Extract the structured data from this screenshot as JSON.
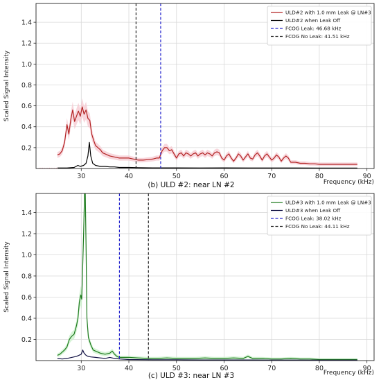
{
  "chart_data": [
    {
      "type": "line",
      "title": "",
      "caption": "(b) ULD #2: near LN #2",
      "xlabel": "Frequency (kHz)",
      "ylabel": "Scaled Signal Intensity",
      "xlim": [
        20.5,
        91.5
      ],
      "ylim": [
        0,
        1.58
      ],
      "x_ticks": [
        30,
        40,
        50,
        60,
        70,
        80,
        90
      ],
      "y_ticks": [
        0.2,
        0.4,
        0.6,
        0.8,
        1.0,
        1.2,
        1.4
      ],
      "grid": true,
      "legend_position": "top-right",
      "series": [
        {
          "name": "ULD#2 with 1.0 mm Leak @ LN#3",
          "color": "#b22222",
          "band_color": "#f6c8d0",
          "x": [
            25,
            25.5,
            26,
            26.5,
            27,
            27.4,
            27.8,
            28.2,
            28.6,
            29,
            29.4,
            29.8,
            30.2,
            30.6,
            31,
            31.4,
            31.8,
            32.2,
            32.6,
            33,
            33.5,
            34,
            34.5,
            35,
            35.5,
            36,
            37,
            38,
            39,
            40,
            41,
            42,
            43,
            44,
            45,
            45.8,
            46.4,
            47,
            47.5,
            48,
            48.5,
            49,
            49.5,
            50,
            50.5,
            51,
            51.5,
            52,
            52.5,
            53,
            53.5,
            54,
            54.5,
            55,
            55.5,
            56,
            56.5,
            57,
            57.5,
            58,
            58.5,
            59,
            59.5,
            60,
            60.5,
            61,
            61.5,
            62,
            62.5,
            63,
            63.5,
            64,
            64.5,
            65,
            65.5,
            66,
            66.5,
            67,
            67.5,
            68,
            68.5,
            69,
            69.5,
            70,
            70.5,
            71,
            71.5,
            72,
            72.5,
            73,
            73.5,
            74,
            75,
            76,
            77,
            78,
            79,
            80,
            82,
            84,
            86,
            88
          ],
          "y": [
            0.13,
            0.14,
            0.17,
            0.25,
            0.42,
            0.33,
            0.47,
            0.56,
            0.45,
            0.5,
            0.55,
            0.5,
            0.59,
            0.52,
            0.56,
            0.48,
            0.46,
            0.33,
            0.27,
            0.22,
            0.2,
            0.18,
            0.15,
            0.14,
            0.13,
            0.12,
            0.11,
            0.1,
            0.1,
            0.1,
            0.09,
            0.08,
            0.08,
            0.085,
            0.09,
            0.1,
            0.1,
            0.17,
            0.2,
            0.2,
            0.17,
            0.18,
            0.14,
            0.1,
            0.14,
            0.15,
            0.12,
            0.15,
            0.14,
            0.12,
            0.14,
            0.15,
            0.12,
            0.14,
            0.15,
            0.13,
            0.15,
            0.14,
            0.12,
            0.15,
            0.16,
            0.15,
            0.1,
            0.08,
            0.12,
            0.14,
            0.1,
            0.07,
            0.1,
            0.14,
            0.12,
            0.08,
            0.11,
            0.14,
            0.1,
            0.09,
            0.13,
            0.15,
            0.12,
            0.08,
            0.12,
            0.14,
            0.11,
            0.08,
            0.1,
            0.13,
            0.11,
            0.07,
            0.1,
            0.12,
            0.1,
            0.06,
            0.06,
            0.05,
            0.05,
            0.045,
            0.045,
            0.04,
            0.04,
            0.04,
            0.04,
            0.04
          ]
        },
        {
          "name": "ULD#2 when Leak Off",
          "color": "#000000",
          "x": [
            25,
            27,
            28.5,
            29.3,
            29.8,
            30.5,
            31,
            31.4,
            31.7,
            32,
            32.4,
            33,
            34,
            35,
            36,
            37,
            38,
            40,
            42,
            45,
            50,
            55,
            60,
            65,
            70,
            75,
            80,
            85,
            88
          ],
          "y": [
            0.005,
            0.005,
            0.01,
            0.03,
            0.02,
            0.03,
            0.05,
            0.12,
            0.25,
            0.12,
            0.05,
            0.03,
            0.02,
            0.02,
            0.015,
            0.015,
            0.01,
            0.01,
            0.008,
            0.006,
            0.006,
            0.005,
            0.006,
            0.005,
            0.005,
            0.005,
            0.004,
            0.004,
            0.004
          ]
        }
      ],
      "vlines": [
        {
          "name": "FCOG Leak: 46.68 kHz",
          "x": 46.68,
          "color": "#2222cc"
        },
        {
          "name": "FCOG No Leak: 41.51 kHz",
          "x": 41.51,
          "color": "#222222"
        }
      ]
    },
    {
      "type": "line",
      "title": "",
      "caption": "(c) ULD #3: near LN #3",
      "xlabel": "Frequency (kHz)",
      "ylabel": "Scaled Signal Intensity",
      "xlim": [
        20.5,
        91.5
      ],
      "ylim": [
        0,
        1.58
      ],
      "x_ticks": [
        30,
        40,
        50,
        60,
        70,
        80,
        90
      ],
      "y_ticks": [
        0.2,
        0.4,
        0.6,
        0.8,
        1.0,
        1.2,
        1.4
      ],
      "grid": true,
      "legend_position": "top-right",
      "series": [
        {
          "name": "ULD#3 with 1.0 mm Leak @ LN#3",
          "color": "#1e7a1e",
          "band_color": "#c8f0c8",
          "x": [
            25,
            25.5,
            26,
            26.5,
            27,
            27.5,
            28,
            28.5,
            29,
            29.3,
            29.6,
            29.9,
            30.1,
            30.3,
            30.5,
            30.7,
            30.85,
            31,
            31.2,
            31.5,
            32,
            32.5,
            33,
            33.5,
            34,
            35,
            36,
            36.5,
            37,
            37.5,
            38,
            39,
            40,
            42,
            44,
            46,
            48,
            50,
            52,
            54,
            56,
            58,
            60,
            62,
            64,
            65,
            66,
            68,
            70,
            72,
            74,
            76,
            78,
            80,
            82,
            84,
            86,
            88
          ],
          "y": [
            0.05,
            0.06,
            0.08,
            0.1,
            0.13,
            0.2,
            0.23,
            0.25,
            0.33,
            0.4,
            0.55,
            0.62,
            0.58,
            0.9,
            1.2,
            1.6,
            1.58,
            1.1,
            0.4,
            0.22,
            0.15,
            0.1,
            0.09,
            0.08,
            0.07,
            0.06,
            0.07,
            0.09,
            0.06,
            0.04,
            0.03,
            0.03,
            0.03,
            0.025,
            0.02,
            0.02,
            0.025,
            0.02,
            0.02,
            0.02,
            0.025,
            0.02,
            0.02,
            0.025,
            0.02,
            0.04,
            0.02,
            0.02,
            0.015,
            0.015,
            0.02,
            0.015,
            0.015,
            0.01,
            0.01,
            0.01,
            0.01,
            0.01
          ]
        },
        {
          "name": "ULD#3 when Leak Off",
          "color": "#111144",
          "x": [
            25,
            26,
            27,
            28,
            29,
            29.5,
            30,
            30.3,
            30.6,
            31,
            31.4,
            32,
            33,
            34,
            35,
            36,
            37,
            38,
            40,
            45,
            50,
            55,
            60,
            65,
            70,
            75,
            80,
            85,
            88
          ],
          "y": [
            0.02,
            0.015,
            0.02,
            0.03,
            0.04,
            0.05,
            0.06,
            0.1,
            0.07,
            0.05,
            0.04,
            0.035,
            0.03,
            0.025,
            0.02,
            0.03,
            0.02,
            0.015,
            0.01,
            0.008,
            0.008,
            0.006,
            0.006,
            0.006,
            0.005,
            0.005,
            0.004,
            0.004,
            0.004
          ]
        }
      ],
      "vlines": [
        {
          "name": "FCOG Leak: 38.02 kHz",
          "x": 38.02,
          "color": "#2222cc"
        },
        {
          "name": "FCOG No Leak: 44.11 kHz",
          "x": 44.11,
          "color": "#222222"
        }
      ]
    }
  ]
}
